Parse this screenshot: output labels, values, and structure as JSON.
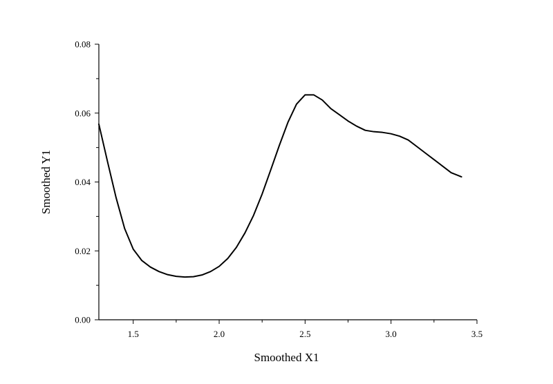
{
  "chart_data": {
    "type": "line",
    "title": "",
    "xlabel": "Smoothed X1",
    "ylabel": "Smoothed Y1",
    "xlim": [
      1.3,
      3.5
    ],
    "ylim": [
      0.0,
      0.08
    ],
    "x_ticks": [
      1.5,
      2.0,
      2.5,
      3.0,
      3.5
    ],
    "x_tick_labels": [
      "1.5",
      "2.0",
      "2.5",
      "3.0",
      "3.5"
    ],
    "y_ticks": [
      0.0,
      0.02,
      0.04,
      0.06,
      0.08
    ],
    "y_tick_labels": [
      "0.00",
      "0.02",
      "0.04",
      "0.06",
      "0.08"
    ],
    "grid": false,
    "legend": "none",
    "series": [
      {
        "color": "#000000",
        "x": [
          1.3,
          1.35,
          1.4,
          1.45,
          1.5,
          1.55,
          1.6,
          1.65,
          1.7,
          1.75,
          1.8,
          1.85,
          1.9,
          1.95,
          2.0,
          2.05,
          2.1,
          2.15,
          2.2,
          2.25,
          2.3,
          2.35,
          2.4,
          2.45,
          2.5,
          2.55,
          2.6,
          2.65,
          2.7,
          2.75,
          2.8,
          2.85,
          2.9,
          2.95,
          3.0,
          3.05,
          3.1,
          3.15,
          3.2,
          3.25,
          3.3,
          3.35,
          3.41
        ],
        "y": [
          0.0568,
          0.046,
          0.0355,
          0.0265,
          0.0205,
          0.0172,
          0.0153,
          0.014,
          0.0131,
          0.0126,
          0.0124,
          0.0125,
          0.013,
          0.014,
          0.0155,
          0.0178,
          0.021,
          0.0252,
          0.0303,
          0.0365,
          0.0435,
          0.0506,
          0.0573,
          0.0626,
          0.0653,
          0.0653,
          0.0638,
          0.0613,
          0.0595,
          0.0577,
          0.0562,
          0.055,
          0.0546,
          0.0544,
          0.054,
          0.0533,
          0.0522,
          0.0503,
          0.0484,
          0.0465,
          0.0446,
          0.0427,
          0.0415
        ]
      }
    ]
  }
}
